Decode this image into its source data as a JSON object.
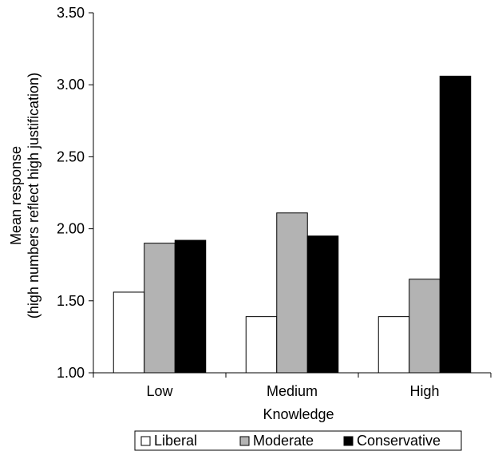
{
  "chart_data": {
    "type": "bar",
    "title": "",
    "xlabel": "Knowledge",
    "ylabel_line1": "Mean response",
    "ylabel_line2": "(high numbers reflect high justification)",
    "categories": [
      "Low",
      "Medium",
      "High"
    ],
    "ylim": [
      1.0,
      3.5
    ],
    "yticks": [
      "1.00",
      "1.50",
      "2.00",
      "2.50",
      "3.00",
      "3.50"
    ],
    "grid": false,
    "legend_position": "bottom",
    "series": [
      {
        "name": "Liberal",
        "color": "#ffffff",
        "values": [
          1.56,
          1.39,
          1.39
        ]
      },
      {
        "name": "Moderate",
        "color": "#b3b3b3",
        "values": [
          1.9,
          2.11,
          1.65
        ]
      },
      {
        "name": "Conservative",
        "color": "#000000",
        "values": [
          1.92,
          1.95,
          3.06
        ]
      }
    ]
  }
}
